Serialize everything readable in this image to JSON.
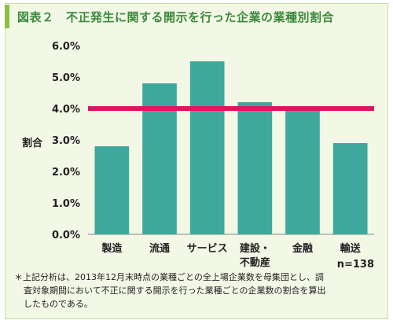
{
  "figure": {
    "title": "図表２　不正発生に関する開示を行った企業の業種別割合",
    "sample_size": "n=138",
    "note_lines": [
      "＊上記分析は、2013年12月末時点の業種ごとの全上場企業数を母集団とし、調",
      "査対象期間において不正に関する開示を行った業種ごとの企業数の割合を算出",
      "したものである。"
    ]
  },
  "chart_data": {
    "type": "bar",
    "title": "",
    "ylabel": "割合",
    "xlabel": "",
    "ylim": [
      0,
      6
    ],
    "yticks": [
      "0.0%",
      "1.0%",
      "2.0%",
      "3.0%",
      "4.0%",
      "5.0%",
      "6.0%"
    ],
    "categories": [
      [
        "製造"
      ],
      [
        "流通"
      ],
      [
        "サービス"
      ],
      [
        "建設・",
        "不動産"
      ],
      [
        "金融"
      ],
      [
        "輸送"
      ]
    ],
    "values": [
      2.8,
      4.8,
      5.5,
      4.2,
      4.0,
      2.9
    ],
    "reference_line": 4.0,
    "colors": {
      "bar": "#3fa89c",
      "reference_line": "#e0155f",
      "title": "#3c8a3a",
      "accent": "#8fc03d"
    }
  }
}
